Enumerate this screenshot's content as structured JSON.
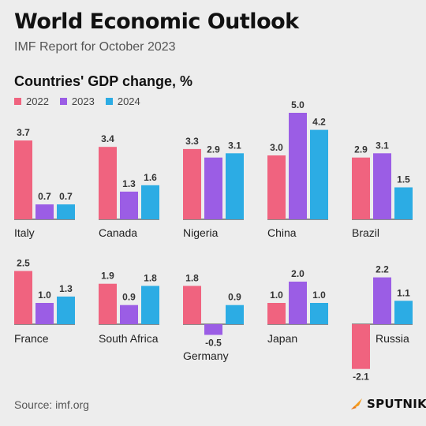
{
  "header": {
    "title": "World Economic Outlook",
    "subtitle": "IMF Report for October 2023"
  },
  "footer": {
    "source": "Source: imf.org",
    "brand": "SPUTNIK",
    "brand_icon": "sputnik-logo-icon"
  },
  "colors": {
    "2022": "#f0637f",
    "2023": "#9b5de5",
    "2024": "#2cace4",
    "background": "#ededed"
  },
  "chart_data": {
    "type": "bar",
    "title": "Countries' GDP change, %",
    "legend_position": "top-left",
    "grid": false,
    "series": [
      {
        "name": "2022",
        "values": [
          3.7,
          3.4,
          3.3,
          3.0,
          2.9,
          2.5,
          1.9,
          1.8,
          1.0,
          -2.1
        ]
      },
      {
        "name": "2023",
        "values": [
          0.7,
          1.3,
          2.9,
          5.0,
          3.1,
          1.0,
          0.9,
          -0.5,
          2.0,
          2.2
        ]
      },
      {
        "name": "2024",
        "values": [
          0.7,
          1.6,
          3.1,
          4.2,
          1.5,
          1.3,
          1.8,
          0.9,
          1.0,
          1.1
        ]
      }
    ],
    "categories": [
      "Italy",
      "Canada",
      "Nigeria",
      "China",
      "Brazil",
      "France",
      "South Africa",
      "Germany",
      "Japan",
      "Russia"
    ],
    "value_labels": [
      [
        "3.7",
        "0.7",
        "0.7"
      ],
      [
        "3.4",
        "1.3",
        "1.6"
      ],
      [
        "3.3",
        "2.9",
        "3.1"
      ],
      [
        "3.0",
        "5.0",
        "4.2"
      ],
      [
        "2.9",
        "3.1",
        "1.5"
      ],
      [
        "2.5",
        "1.0",
        "1.3"
      ],
      [
        "1.9",
        "0.9",
        "1.8"
      ],
      [
        "1.8",
        "-0.5",
        "0.9"
      ],
      [
        "1.0",
        "2.0",
        "1.0"
      ],
      [
        "-2.1",
        "2.2",
        "1.1"
      ]
    ]
  }
}
